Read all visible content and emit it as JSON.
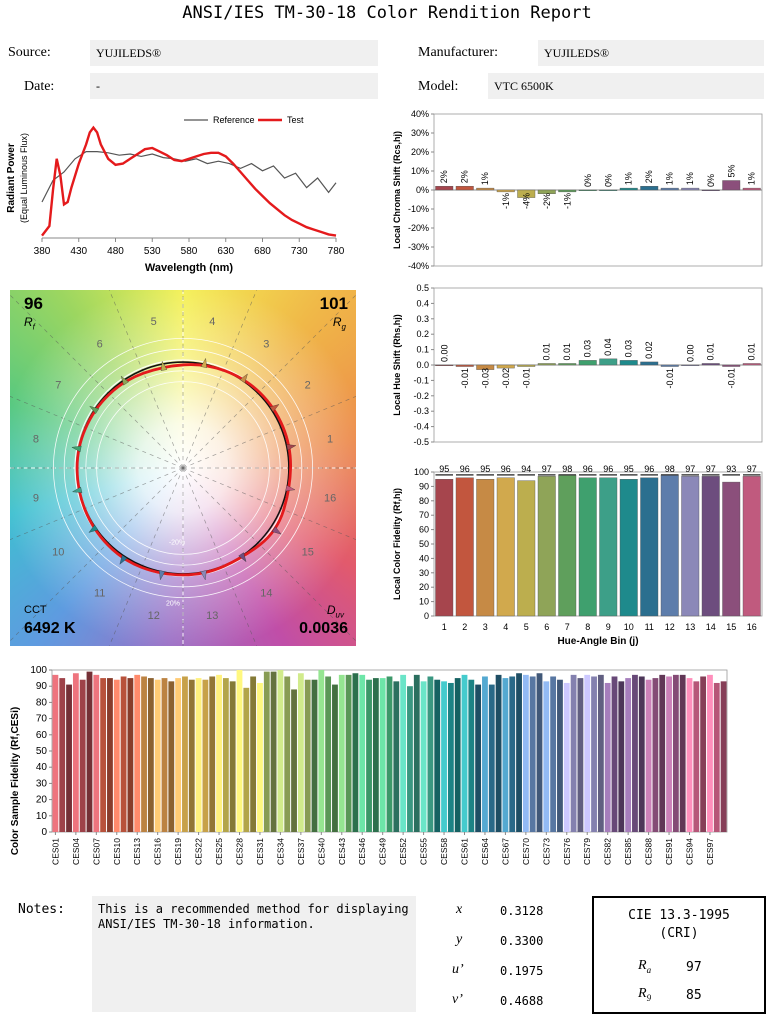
{
  "title": "ANSI/IES TM-30-18 Color Rendition Report",
  "header": {
    "source_label": "Source:",
    "source_value": "YUJILEDS®",
    "date_label": "Date:",
    "date_value": "-",
    "manufacturer_label": "Manufacturer:",
    "manufacturer_value": "YUJILEDS®",
    "model_label": "Model:",
    "model_value": "VTC 6500K"
  },
  "vector": {
    "rf_value": "96",
    "rf_label": "R",
    "rf_sub": "f",
    "rg_value": "101",
    "rg_label": "R",
    "rg_sub": "g",
    "cct_label": "CCT",
    "cct_value": "6492 K",
    "duv_label": "D",
    "duv_sub": "uv",
    "duv_value": "0.0036",
    "bin_numbers": [
      "1",
      "2",
      "3",
      "4",
      "5",
      "6",
      "7",
      "8",
      "9",
      "10",
      "11",
      "12",
      "13",
      "14",
      "15",
      "16"
    ],
    "ring_labels": [
      "-20%",
      "20%"
    ]
  },
  "colors": {
    "test": "#e41a1c",
    "reference": "#555555",
    "axis": "#888888"
  },
  "bin_colors": [
    "#a6454d",
    "#c2563e",
    "#c68a45",
    "#d1a94d",
    "#bcae4e",
    "#8fa458",
    "#5f9f5c",
    "#3fa06e",
    "#3d9f88",
    "#1e8a8c",
    "#2b6f8f",
    "#5d7dab",
    "#8b88b8",
    "#6d4d7e",
    "#8b4f7b",
    "#c05a7e"
  ],
  "notes": {
    "label": "Notes:",
    "text": "This is a recommended method for displaying ANSI/IES TM-30-18 information."
  },
  "chromaticity": [
    {
      "symbol": "x",
      "value": "0.3128"
    },
    {
      "symbol": "y",
      "value": "0.3300"
    },
    {
      "symbol": "u’",
      "value": "0.1975"
    },
    {
      "symbol": "v’",
      "value": "0.4688"
    }
  ],
  "cri": {
    "title": "CIE 13.3-1995",
    "subtitle": "(CRI)",
    "ra_label": "R",
    "ra_sub": "a",
    "ra_value": "97",
    "r9_label": "R",
    "r9_sub": "9",
    "r9_value": "85"
  },
  "chart_data": [
    {
      "type": "line",
      "xlabel": "Wavelength (nm)",
      "ylabel": "Radiant Power (Equal Luminous Flux)",
      "xlim": [
        380,
        780
      ],
      "xticks": [
        "380",
        "430",
        "480",
        "530",
        "580",
        "630",
        "680",
        "730",
        "780"
      ],
      "series": [
        {
          "name": "Reference",
          "x": [
            380,
            395,
            410,
            425,
            440,
            455,
            470,
            485,
            500,
            515,
            530,
            545,
            560,
            575,
            590,
            605,
            620,
            635,
            650,
            665,
            680,
            695,
            710,
            725,
            740,
            755,
            770,
            780
          ],
          "values": [
            0.3,
            0.48,
            0.55,
            0.66,
            0.72,
            0.72,
            0.71,
            0.69,
            0.7,
            0.68,
            0.7,
            0.67,
            0.66,
            0.64,
            0.66,
            0.62,
            0.64,
            0.62,
            0.58,
            0.62,
            0.56,
            0.6,
            0.5,
            0.54,
            0.42,
            0.5,
            0.38,
            0.46
          ]
        },
        {
          "name": "Test",
          "x": [
            380,
            390,
            395,
            400,
            405,
            410,
            415,
            420,
            430,
            440,
            445,
            450,
            455,
            460,
            470,
            480,
            490,
            500,
            510,
            520,
            530,
            540,
            550,
            560,
            570,
            580,
            590,
            600,
            610,
            620,
            630,
            640,
            650,
            660,
            670,
            680,
            690,
            700,
            710,
            720,
            730,
            740,
            750,
            760,
            770,
            780
          ],
          "values": [
            0.02,
            0.1,
            0.4,
            0.66,
            0.52,
            0.28,
            0.3,
            0.42,
            0.62,
            0.78,
            0.88,
            0.92,
            0.88,
            0.78,
            0.66,
            0.61,
            0.62,
            0.66,
            0.7,
            0.74,
            0.75,
            0.72,
            0.69,
            0.65,
            0.64,
            0.66,
            0.68,
            0.7,
            0.71,
            0.71,
            0.68,
            0.62,
            0.55,
            0.48,
            0.41,
            0.35,
            0.29,
            0.24,
            0.19,
            0.15,
            0.12,
            0.09,
            0.07,
            0.05,
            0.03,
            0.02
          ]
        }
      ]
    },
    {
      "type": "bar",
      "ylabel": "Local Chroma Shift (Rcs,hj)",
      "categories": [
        "1",
        "2",
        "3",
        "4",
        "5",
        "6",
        "7",
        "8",
        "9",
        "10",
        "11",
        "12",
        "13",
        "14",
        "15",
        "16"
      ],
      "values": [
        2,
        2,
        1,
        -1,
        -4,
        -2,
        -1,
        0,
        0,
        1,
        2,
        1,
        1,
        0,
        5,
        1
      ],
      "value_labels": [
        "2%",
        "2%",
        "1%",
        "-1%",
        "-4%",
        "-2%",
        "-1%",
        "0%",
        "0%",
        "1%",
        "2%",
        "1%",
        "1%",
        "0%",
        "5%",
        "1%"
      ],
      "ylim": [
        -40,
        40
      ],
      "yticks": [
        "40%",
        "30%",
        "20%",
        "10%",
        "0%",
        "-10%",
        "-20%",
        "-30%",
        "-40%"
      ]
    },
    {
      "type": "bar",
      "ylabel": "Local Hue Shift (Rhs,hj)",
      "categories": [
        "1",
        "2",
        "3",
        "4",
        "5",
        "6",
        "7",
        "8",
        "9",
        "10",
        "11",
        "12",
        "13",
        "14",
        "15",
        "16"
      ],
      "values": [
        0.0,
        -0.01,
        -0.03,
        -0.02,
        -0.01,
        0.01,
        0.01,
        0.03,
        0.04,
        0.03,
        0.02,
        -0.01,
        0.0,
        0.01,
        -0.01,
        0.01
      ],
      "value_labels": [
        "0.00",
        "-0.01",
        "-0.03",
        "-0.02",
        "-0.01",
        "0.01",
        "0.01",
        "0.03",
        "0.04",
        "0.03",
        "0.02",
        "-0.01",
        "0.00",
        "0.01",
        "-0.01",
        "0.01"
      ],
      "ylim": [
        -0.5,
        0.5
      ],
      "yticks": [
        "0.5",
        "0.4",
        "0.3",
        "0.2",
        "0.1",
        "0.0",
        "-0.1",
        "-0.2",
        "-0.3",
        "-0.4",
        "-0.5"
      ]
    },
    {
      "type": "bar",
      "ylabel": "Local Color Fidelity (Rf,hj)",
      "xlabel": "Hue-Angle Bin (j)",
      "categories": [
        "1",
        "2",
        "3",
        "4",
        "5",
        "6",
        "7",
        "8",
        "9",
        "10",
        "11",
        "12",
        "13",
        "14",
        "15",
        "16"
      ],
      "values": [
        95,
        96,
        95,
        96,
        94,
        97,
        98,
        96,
        96,
        95,
        96,
        98,
        97,
        97,
        93,
        97
      ],
      "ref_values": [
        98,
        98,
        98,
        98,
        98,
        98,
        98,
        98,
        98,
        98,
        98,
        98,
        98,
        98,
        98,
        98
      ],
      "ylim": [
        0,
        100
      ],
      "yticks": [
        "100",
        "90",
        "80",
        "70",
        "60",
        "50",
        "40",
        "30",
        "20",
        "10",
        "0"
      ]
    },
    {
      "type": "bar",
      "ylabel": "Color Sample Fidelity (Rf,CESi)",
      "tick_labels": [
        "CES01",
        "CES04",
        "CES07",
        "CES10",
        "CES13",
        "CES16",
        "CES19",
        "CES22",
        "CES25",
        "CES28",
        "CES31",
        "CES34",
        "CES37",
        "CES40",
        "CES43",
        "CES46",
        "CES49",
        "CES52",
        "CES55",
        "CES58",
        "CES61",
        "CES64",
        "CES67",
        "CES70",
        "CES73",
        "CES76",
        "CES79",
        "CES82",
        "CES85",
        "CES88",
        "CES91",
        "CES94",
        "CES97"
      ],
      "values": [
        97,
        95,
        91,
        98,
        94,
        99,
        97,
        95,
        95,
        94,
        96,
        95,
        97,
        96,
        95,
        94,
        95,
        93,
        95,
        96,
        94,
        95,
        94,
        96,
        97,
        95,
        93,
        100,
        89,
        96,
        92,
        99,
        99,
        100,
        96,
        88,
        98,
        94,
        94,
        100,
        96,
        91,
        97,
        97,
        98,
        97,
        94,
        95,
        95,
        96,
        93,
        97,
        90,
        97,
        93,
        96,
        94,
        93,
        92,
        95,
        97,
        94,
        91,
        96,
        91,
        97,
        95,
        96,
        98,
        97,
        96,
        98,
        93,
        96,
        94,
        92,
        97,
        95,
        97,
        96,
        97,
        92,
        96,
        93,
        95,
        97,
        96,
        94,
        95,
        97,
        96,
        97,
        97,
        95,
        93,
        96,
        97,
        92,
        93
      ],
      "ylim": [
        0,
        100
      ],
      "yticks": [
        "100",
        "90",
        "80",
        "70",
        "60",
        "50",
        "40",
        "30",
        "20",
        "10",
        "0"
      ]
    }
  ]
}
